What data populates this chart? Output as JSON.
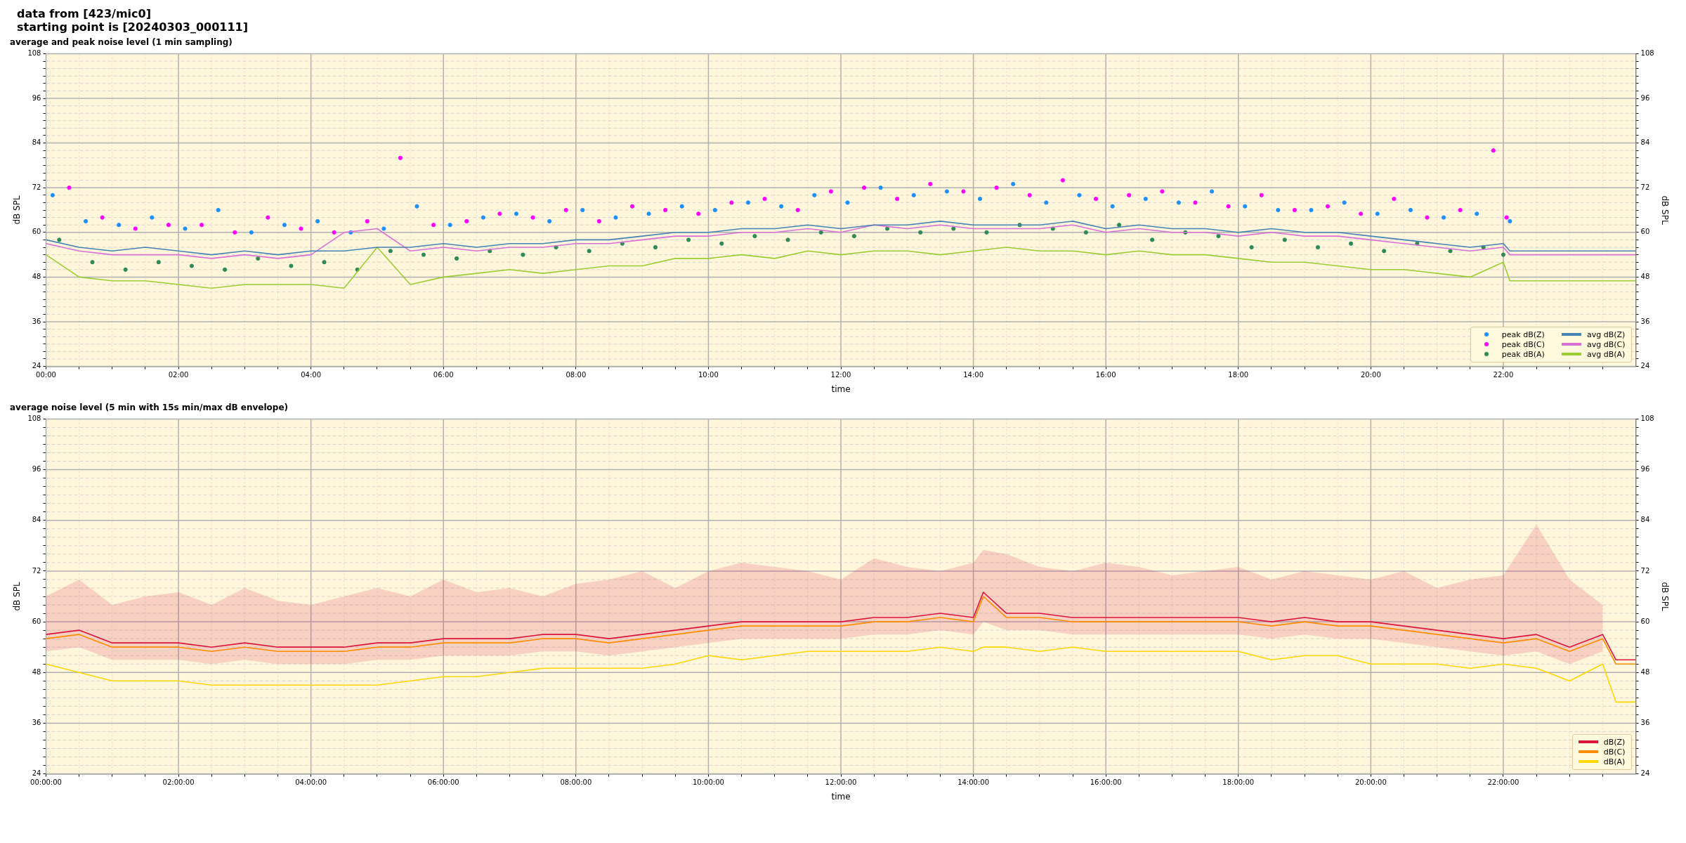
{
  "chart_data": [
    {
      "type": "line",
      "title": "average and peak noise level (1 min sampling)",
      "annotations": [
        "data from [423/mic0]",
        "starting point is [20240303_000111]"
      ],
      "xlabel": "time",
      "ylabel": "dB SPL",
      "y2label": "dB SPL",
      "xlim": [
        0,
        24
      ],
      "ylim": [
        24,
        108
      ],
      "y2lim": [
        24,
        108
      ],
      "grid": true,
      "legend": "bottom right",
      "xticks": [
        {
          "value": 0,
          "label": "00:00"
        },
        {
          "value": 0.5,
          "label": null
        },
        {
          "value": 1,
          "label": null
        },
        {
          "value": 1.5,
          "label": null
        },
        {
          "value": 2,
          "label": "02:00"
        },
        {
          "value": 2.5,
          "label": null
        },
        {
          "value": 3,
          "label": null
        },
        {
          "value": 3.5,
          "label": null
        },
        {
          "value": 4,
          "label": "04:00"
        },
        {
          "value": 4.5,
          "label": null
        },
        {
          "value": 5,
          "label": null
        },
        {
          "value": 5.5,
          "label": null
        },
        {
          "value": 6,
          "label": "06:00"
        },
        {
          "value": 6.5,
          "label": null
        },
        {
          "value": 7,
          "label": null
        },
        {
          "value": 7.5,
          "label": null
        },
        {
          "value": 8,
          "label": "08:00"
        },
        {
          "value": 8.5,
          "label": null
        },
        {
          "value": 9,
          "label": null
        },
        {
          "value": 9.5,
          "label": null
        },
        {
          "value": 10,
          "label": "10:00"
        },
        {
          "value": 10.5,
          "label": null
        },
        {
          "value": 11,
          "label": null
        },
        {
          "value": 11.5,
          "label": null
        },
        {
          "value": 12,
          "label": "12:00"
        },
        {
          "value": 12.5,
          "label": null
        },
        {
          "value": 13,
          "label": null
        },
        {
          "value": 13.5,
          "label": null
        },
        {
          "value": 14,
          "label": "14:00"
        },
        {
          "value": 14.5,
          "label": null
        },
        {
          "value": 15,
          "label": null
        },
        {
          "value": 15.5,
          "label": null
        },
        {
          "value": 16,
          "label": "16:00"
        },
        {
          "value": 16.5,
          "label": null
        },
        {
          "value": 17,
          "label": null
        },
        {
          "value": 17.5,
          "label": null
        },
        {
          "value": 18,
          "label": "18:00"
        },
        {
          "value": 18.5,
          "label": null
        },
        {
          "value": 19,
          "label": null
        },
        {
          "value": 19.5,
          "label": null
        },
        {
          "value": 20,
          "label": "20:00"
        },
        {
          "value": 20.5,
          "label": null
        },
        {
          "value": 21,
          "label": null
        },
        {
          "value": 21.5,
          "label": null
        },
        {
          "value": 22,
          "label": "22:00"
        },
        {
          "value": 22.5,
          "label": null
        },
        {
          "value": 23,
          "label": null
        },
        {
          "value": 23.5,
          "label": null
        }
      ],
      "yticks": [
        24,
        {
          "value": 26,
          "label": null
        },
        {
          "value": 28,
          "label": null
        },
        {
          "value": 30,
          "label": null
        },
        {
          "value": 32,
          "label": null
        },
        {
          "value": 34,
          "label": null
        },
        36,
        {
          "value": 38,
          "label": null
        },
        {
          "value": 40,
          "label": null
        },
        {
          "value": 42,
          "label": null
        },
        {
          "value": 44,
          "label": null
        },
        {
          "value": 46,
          "label": null
        },
        48,
        {
          "value": 50,
          "label": null
        },
        {
          "value": 52,
          "label": null
        },
        {
          "value": 54,
          "label": null
        },
        {
          "value": 56,
          "label": null
        },
        {
          "value": 58,
          "label": null
        },
        60,
        {
          "value": 62,
          "label": null
        },
        {
          "value": 64,
          "label": null
        },
        {
          "value": 66,
          "label": null
        },
        {
          "value": 68,
          "label": null
        },
        {
          "value": 70,
          "label": null
        },
        72,
        {
          "value": 74,
          "label": null
        },
        {
          "value": 76,
          "label": null
        },
        {
          "value": 78,
          "label": null
        },
        {
          "value": 80,
          "label": null
        },
        {
          "value": 82,
          "label": null
        },
        84,
        {
          "value": 86,
          "label": null
        },
        {
          "value": 88,
          "label": null
        },
        {
          "value": 90,
          "label": null
        },
        {
          "value": 92,
          "label": null
        },
        {
          "value": 94,
          "label": null
        },
        96,
        {
          "value": 98,
          "label": null
        },
        {
          "value": 100,
          "label": null
        },
        {
          "value": 102,
          "label": null
        },
        {
          "value": 104,
          "label": null
        },
        {
          "value": 106,
          "label": null
        },
        108
      ],
      "y2ticks": [
        24,
        {
          "value": 26,
          "label": null
        },
        {
          "value": 28,
          "label": null
        },
        {
          "value": 30,
          "label": null
        },
        {
          "value": 32,
          "label": null
        },
        {
          "value": 34,
          "label": null
        },
        36,
        {
          "value": 38,
          "label": null
        },
        {
          "value": 40,
          "label": null
        },
        {
          "value": 42,
          "label": null
        },
        {
          "value": 44,
          "label": null
        },
        {
          "value": 46,
          "label": null
        },
        48,
        {
          "value": 50,
          "label": null
        },
        {
          "value": 52,
          "label": null
        },
        {
          "value": 54,
          "label": null
        },
        {
          "value": 56,
          "label": null
        },
        {
          "value": 58,
          "label": null
        },
        60,
        {
          "value": 62,
          "label": null
        },
        {
          "value": 64,
          "label": null
        },
        {
          "value": 66,
          "label": null
        },
        {
          "value": 68,
          "label": null
        },
        {
          "value": 70,
          "label": null
        },
        72,
        {
          "value": 74,
          "label": null
        },
        {
          "value": 76,
          "label": null
        },
        {
          "value": 78,
          "label": null
        },
        {
          "value": 80,
          "label": null
        },
        {
          "value": 82,
          "label": null
        },
        84,
        {
          "value": 86,
          "label": null
        },
        {
          "value": 88,
          "label": null
        },
        {
          "value": 90,
          "label": null
        },
        {
          "value": 92,
          "label": null
        },
        {
          "value": 94,
          "label": null
        },
        96,
        {
          "value": 98,
          "label": null
        },
        {
          "value": 100,
          "label": null
        },
        {
          "value": 102,
          "label": null
        },
        {
          "value": 104,
          "label": null
        },
        {
          "value": 106,
          "label": null
        },
        108
      ],
      "series": [
        {
          "name": "peak dB(Z)",
          "type": "scatter",
          "marker": "circle",
          "color": "#1e90ff",
          "x": [
            0.1,
            0.6,
            1.1,
            1.6,
            2.1,
            2.6,
            3.1,
            3.6,
            4.1,
            4.6,
            5.1,
            5.6,
            6.1,
            6.6,
            7.1,
            7.6,
            8.1,
            8.6,
            9.1,
            9.6,
            10.1,
            10.6,
            11.1,
            11.6,
            12.1,
            12.6,
            13.1,
            13.6,
            14.1,
            14.6,
            15.1,
            15.6,
            16.1,
            16.6,
            17.1,
            17.6,
            18.1,
            18.6,
            19.1,
            19.6,
            20.1,
            20.6,
            21.1,
            21.6,
            22.1
          ],
          "values": [
            70,
            63,
            62,
            64,
            61,
            66,
            60,
            62,
            63,
            60,
            61,
            67,
            62,
            64,
            65,
            63,
            66,
            64,
            65,
            67,
            66,
            68,
            67,
            70,
            68,
            72,
            70,
            71,
            69,
            73,
            68,
            70,
            67,
            69,
            68,
            71,
            67,
            66,
            66,
            68,
            65,
            66,
            64,
            65,
            63
          ]
        },
        {
          "name": "peak dB(C)",
          "type": "scatter",
          "marker": "circle",
          "color": "#ff00ff",
          "x": [
            0.35,
            0.85,
            1.35,
            1.85,
            2.35,
            2.85,
            3.35,
            3.85,
            4.35,
            4.85,
            5.35,
            5.85,
            6.35,
            6.85,
            7.35,
            7.85,
            8.35,
            8.85,
            9.35,
            9.85,
            10.35,
            10.85,
            11.35,
            11.85,
            12.35,
            12.85,
            13.35,
            13.85,
            14.35,
            14.85,
            15.35,
            15.85,
            16.35,
            16.85,
            17.35,
            17.85,
            18.35,
            18.85,
            19.35,
            19.85,
            20.35,
            20.85,
            21.35,
            21.85,
            22.05
          ],
          "values": [
            72,
            64,
            61,
            62,
            62,
            60,
            64,
            61,
            60,
            63,
            80,
            62,
            63,
            65,
            64,
            66,
            63,
            67,
            66,
            65,
            68,
            69,
            66,
            71,
            72,
            69,
            73,
            71,
            72,
            70,
            74,
            69,
            70,
            71,
            68,
            67,
            70,
            66,
            67,
            65,
            69,
            64,
            66,
            82,
            64
          ]
        },
        {
          "name": "peak dB(A)",
          "type": "scatter",
          "marker": "circle",
          "color": "#2e8b57",
          "x": [
            0.2,
            0.7,
            1.2,
            1.7,
            2.2,
            2.7,
            3.2,
            3.7,
            4.2,
            4.7,
            5.2,
            5.7,
            6.2,
            6.7,
            7.2,
            7.7,
            8.2,
            8.7,
            9.2,
            9.7,
            10.2,
            10.7,
            11.2,
            11.7,
            12.2,
            12.7,
            13.2,
            13.7,
            14.2,
            14.7,
            15.2,
            15.7,
            16.2,
            16.7,
            17.2,
            17.7,
            18.2,
            18.7,
            19.2,
            19.7,
            20.2,
            20.7,
            21.2,
            21.7,
            22.0
          ],
          "values": [
            58,
            52,
            50,
            52,
            51,
            50,
            53,
            51,
            52,
            50,
            55,
            54,
            53,
            55,
            54,
            56,
            55,
            57,
            56,
            58,
            57,
            59,
            58,
            60,
            59,
            61,
            60,
            61,
            60,
            62,
            61,
            60,
            62,
            58,
            60,
            59,
            56,
            58,
            56,
            57,
            55,
            57,
            55,
            56,
            54
          ]
        },
        {
          "name": "avg dB(Z)",
          "color": "#4682b4",
          "x": [
            0,
            0.5,
            1,
            1.5,
            2,
            2.5,
            3,
            3.5,
            4,
            4.5,
            5,
            5.5,
            6,
            6.5,
            7,
            7.5,
            8,
            8.5,
            9,
            9.5,
            10,
            10.5,
            11,
            11.5,
            12,
            12.5,
            13,
            13.5,
            14,
            14.5,
            15,
            15.5,
            16,
            16.5,
            17,
            17.5,
            18,
            18.5,
            19,
            19.5,
            20,
            20.5,
            21,
            21.5,
            22,
            22.1,
            24
          ],
          "values": [
            58,
            56,
            55,
            56,
            55,
            54,
            55,
            54,
            55,
            55,
            56,
            56,
            57,
            56,
            57,
            57,
            58,
            58,
            59,
            60,
            60,
            61,
            61,
            62,
            61,
            62,
            62,
            63,
            62,
            62,
            62,
            63,
            61,
            62,
            61,
            61,
            60,
            61,
            60,
            60,
            59,
            58,
            57,
            56,
            57,
            55,
            55
          ]
        },
        {
          "name": "avg dB(C)",
          "color": "#da70d6",
          "x": [
            0,
            0.5,
            1,
            1.5,
            2,
            2.5,
            3,
            3.5,
            4,
            4.5,
            5,
            5.5,
            6,
            6.5,
            7,
            7.5,
            8,
            8.5,
            9,
            9.5,
            10,
            10.5,
            11,
            11.5,
            12,
            12.5,
            13,
            13.5,
            14,
            14.5,
            15,
            15.5,
            16,
            16.5,
            17,
            17.5,
            18,
            18.5,
            19,
            19.5,
            20,
            20.5,
            21,
            21.5,
            22,
            22.1,
            24
          ],
          "values": [
            57,
            55,
            54,
            54,
            54,
            53,
            54,
            53,
            54,
            60,
            61,
            55,
            56,
            55,
            56,
            56,
            57,
            57,
            58,
            59,
            59,
            60,
            60,
            61,
            60,
            62,
            61,
            62,
            61,
            61,
            61,
            62,
            60,
            61,
            60,
            60,
            59,
            60,
            59,
            59,
            58,
            57,
            56,
            55,
            56,
            54,
            54
          ]
        },
        {
          "name": "avg dB(A)",
          "color": "#9acd32",
          "x": [
            0,
            0.5,
            1,
            1.5,
            2,
            2.5,
            3,
            3.5,
            4,
            4.5,
            5,
            5.5,
            6,
            6.5,
            7,
            7.5,
            8,
            8.5,
            9,
            9.5,
            10,
            10.5,
            11,
            11.5,
            12,
            12.5,
            13,
            13.5,
            14,
            14.5,
            15,
            15.5,
            16,
            16.5,
            17,
            17.5,
            18,
            18.5,
            19,
            19.5,
            20,
            20.5,
            21,
            21.5,
            22,
            22.1,
            24
          ],
          "values": [
            54,
            48,
            47,
            47,
            46,
            45,
            46,
            46,
            46,
            45,
            56,
            46,
            48,
            49,
            50,
            49,
            50,
            51,
            51,
            53,
            53,
            54,
            53,
            55,
            54,
            55,
            55,
            54,
            55,
            56,
            55,
            55,
            54,
            55,
            54,
            54,
            53,
            52,
            52,
            51,
            50,
            50,
            49,
            48,
            52,
            47,
            47
          ]
        }
      ]
    },
    {
      "type": "line",
      "title": "average noise level (5 min with 15s min/max dB envelope)",
      "xlabel": "time",
      "ylabel": "dB SPL",
      "y2label": "dB SPL",
      "xlim": [
        0,
        24
      ],
      "ylim": [
        24,
        108
      ],
      "y2lim": [
        24,
        108
      ],
      "grid": true,
      "legend": "bottom right",
      "xticks": [
        {
          "value": 0,
          "label": "00:00:00"
        },
        {
          "value": 0.5,
          "label": null
        },
        {
          "value": 1,
          "label": null
        },
        {
          "value": 1.5,
          "label": null
        },
        {
          "value": 2,
          "label": "02:00:00"
        },
        {
          "value": 2.5,
          "label": null
        },
        {
          "value": 3,
          "label": null
        },
        {
          "value": 3.5,
          "label": null
        },
        {
          "value": 4,
          "label": "04:00:00"
        },
        {
          "value": 4.5,
          "label": null
        },
        {
          "value": 5,
          "label": null
        },
        {
          "value": 5.5,
          "label": null
        },
        {
          "value": 6,
          "label": "06:00:00"
        },
        {
          "value": 6.5,
          "label": null
        },
        {
          "value": 7,
          "label": null
        },
        {
          "value": 7.5,
          "label": null
        },
        {
          "value": 8,
          "label": "08:00:00"
        },
        {
          "value": 8.5,
          "label": null
        },
        {
          "value": 9,
          "label": null
        },
        {
          "value": 9.5,
          "label": null
        },
        {
          "value": 10,
          "label": "10:00:00"
        },
        {
          "value": 10.5,
          "label": null
        },
        {
          "value": 11,
          "label": null
        },
        {
          "value": 11.5,
          "label": null
        },
        {
          "value": 12,
          "label": "12:00:00"
        },
        {
          "value": 12.5,
          "label": null
        },
        {
          "value": 13,
          "label": null
        },
        {
          "value": 13.5,
          "label": null
        },
        {
          "value": 14,
          "label": "14:00:00"
        },
        {
          "value": 14.5,
          "label": null
        },
        {
          "value": 15,
          "label": null
        },
        {
          "value": 15.5,
          "label": null
        },
        {
          "value": 16,
          "label": "16:00:00"
        },
        {
          "value": 16.5,
          "label": null
        },
        {
          "value": 17,
          "label": null
        },
        {
          "value": 17.5,
          "label": null
        },
        {
          "value": 18,
          "label": "18:00:00"
        },
        {
          "value": 18.5,
          "label": null
        },
        {
          "value": 19,
          "label": null
        },
        {
          "value": 19.5,
          "label": null
        },
        {
          "value": 20,
          "label": "20:00:00"
        },
        {
          "value": 20.5,
          "label": null
        },
        {
          "value": 21,
          "label": null
        },
        {
          "value": 21.5,
          "label": null
        },
        {
          "value": 22,
          "label": "22:00:00"
        },
        {
          "value": 22.5,
          "label": null
        },
        {
          "value": 23,
          "label": null
        },
        {
          "value": 23.5,
          "label": null
        }
      ],
      "yticks": [
        24,
        {
          "value": 26,
          "label": null
        },
        {
          "value": 28,
          "label": null
        },
        {
          "value": 30,
          "label": null
        },
        {
          "value": 32,
          "label": null
        },
        {
          "value": 34,
          "label": null
        },
        36,
        {
          "value": 38,
          "label": null
        },
        {
          "value": 40,
          "label": null
        },
        {
          "value": 42,
          "label": null
        },
        {
          "value": 44,
          "label": null
        },
        {
          "value": 46,
          "label": null
        },
        48,
        {
          "value": 50,
          "label": null
        },
        {
          "value": 52,
          "label": null
        },
        {
          "value": 54,
          "label": null
        },
        {
          "value": 56,
          "label": null
        },
        {
          "value": 58,
          "label": null
        },
        60,
        {
          "value": 62,
          "label": null
        },
        {
          "value": 64,
          "label": null
        },
        {
          "value": 66,
          "label": null
        },
        {
          "value": 68,
          "label": null
        },
        {
          "value": 70,
          "label": null
        },
        72,
        {
          "value": 74,
          "label": null
        },
        {
          "value": 76,
          "label": null
        },
        {
          "value": 78,
          "label": null
        },
        {
          "value": 80,
          "label": null
        },
        {
          "value": 82,
          "label": null
        },
        84,
        {
          "value": 86,
          "label": null
        },
        {
          "value": 88,
          "label": null
        },
        {
          "value": 90,
          "label": null
        },
        {
          "value": 92,
          "label": null
        },
        {
          "value": 94,
          "label": null
        },
        96,
        {
          "value": 98,
          "label": null
        },
        {
          "value": 100,
          "label": null
        },
        {
          "value": 102,
          "label": null
        },
        {
          "value": 104,
          "label": null
        },
        {
          "value": 106,
          "label": null
        },
        108
      ],
      "y2ticks": [
        24,
        {
          "value": 26,
          "label": null
        },
        {
          "value": 28,
          "label": null
        },
        {
          "value": 30,
          "label": null
        },
        {
          "value": 32,
          "label": null
        },
        {
          "value": 34,
          "label": null
        },
        36,
        {
          "value": 38,
          "label": null
        },
        {
          "value": 40,
          "label": null
        },
        {
          "value": 42,
          "label": null
        },
        {
          "value": 44,
          "label": null
        },
        {
          "value": 46,
          "label": null
        },
        48,
        {
          "value": 50,
          "label": null
        },
        {
          "value": 52,
          "label": null
        },
        {
          "value": 54,
          "label": null
        },
        {
          "value": 56,
          "label": null
        },
        {
          "value": 58,
          "label": null
        },
        60,
        {
          "value": 62,
          "label": null
        },
        {
          "value": 64,
          "label": null
        },
        {
          "value": 66,
          "label": null
        },
        {
          "value": 68,
          "label": null
        },
        {
          "value": 70,
          "label": null
        },
        72,
        {
          "value": 74,
          "label": null
        },
        {
          "value": 76,
          "label": null
        },
        {
          "value": 78,
          "label": null
        },
        {
          "value": 80,
          "label": null
        },
        {
          "value": 82,
          "label": null
        },
        84,
        {
          "value": 86,
          "label": null
        },
        {
          "value": 88,
          "label": null
        },
        {
          "value": 90,
          "label": null
        },
        {
          "value": 92,
          "label": null
        },
        {
          "value": 94,
          "label": null
        },
        96,
        {
          "value": 98,
          "label": null
        },
        {
          "value": 100,
          "label": null
        },
        {
          "value": 102,
          "label": null
        },
        {
          "value": 104,
          "label": null
        },
        {
          "value": 106,
          "label": null
        },
        108
      ],
      "x": [
        0,
        0.5,
        1,
        1.5,
        2,
        2.5,
        3,
        3.5,
        4,
        4.5,
        5,
        5.5,
        6,
        6.5,
        7,
        7.5,
        8,
        8.5,
        9,
        9.5,
        10,
        10.5,
        11,
        11.5,
        12,
        12.5,
        13,
        13.5,
        14,
        14.15,
        14.5,
        15,
        15.5,
        16,
        16.5,
        17,
        17.5,
        18,
        18.5,
        19,
        19.5,
        20,
        20.5,
        21,
        21.5,
        22,
        22.5,
        23,
        23.5,
        23.7,
        24
      ],
      "series": [
        {
          "name": "dB(Z)",
          "color": "#dc143c",
          "values": [
            57,
            58,
            55,
            55,
            55,
            54,
            55,
            54,
            54,
            54,
            55,
            55,
            56,
            56,
            56,
            57,
            57,
            56,
            57,
            58,
            59,
            60,
            60,
            60,
            60,
            61,
            61,
            62,
            61,
            67,
            62,
            62,
            61,
            61,
            61,
            61,
            61,
            61,
            60,
            61,
            60,
            60,
            59,
            58,
            57,
            56,
            57,
            54,
            57,
            51,
            51
          ],
          "lower": [
            53,
            54,
            51,
            51,
            51,
            50,
            51,
            50,
            50,
            50,
            51,
            51,
            52,
            52,
            52,
            53,
            53,
            52,
            53,
            54,
            55,
            56,
            56,
            56,
            56,
            57,
            57,
            58,
            57,
            60,
            58,
            58,
            57,
            57,
            57,
            57,
            57,
            57,
            56,
            57,
            56,
            56,
            55,
            54,
            53,
            52,
            53,
            50,
            53,
            null,
            null
          ],
          "upper": [
            66,
            70,
            64,
            66,
            67,
            64,
            68,
            65,
            64,
            66,
            68,
            66,
            70,
            67,
            68,
            66,
            69,
            70,
            72,
            68,
            72,
            74,
            73,
            72,
            70,
            75,
            73,
            72,
            74,
            77,
            76,
            73,
            72,
            74,
            73,
            71,
            72,
            73,
            70,
            72,
            71,
            70,
            72,
            68,
            70,
            71,
            83,
            70,
            64,
            null,
            null
          ]
        },
        {
          "name": "dB(C)",
          "color": "#ff8c00",
          "values": [
            56,
            57,
            54,
            54,
            54,
            53,
            54,
            53,
            53,
            53,
            54,
            54,
            55,
            55,
            55,
            56,
            56,
            55,
            56,
            57,
            58,
            59,
            59,
            59,
            59,
            60,
            60,
            61,
            60,
            66,
            61,
            61,
            60,
            60,
            60,
            60,
            60,
            60,
            59,
            60,
            59,
            59,
            58,
            57,
            56,
            55,
            56,
            53,
            56,
            50,
            50
          ]
        },
        {
          "name": "dB(A)",
          "color": "#ffd700",
          "values": [
            50,
            48,
            46,
            46,
            46,
            45,
            45,
            45,
            45,
            45,
            45,
            46,
            47,
            47,
            48,
            49,
            49,
            49,
            49,
            50,
            52,
            51,
            52,
            53,
            53,
            53,
            53,
            54,
            53,
            54,
            54,
            53,
            54,
            53,
            53,
            53,
            53,
            53,
            51,
            52,
            52,
            50,
            50,
            50,
            49,
            50,
            49,
            46,
            50,
            41,
            41
          ]
        }
      ]
    }
  ]
}
